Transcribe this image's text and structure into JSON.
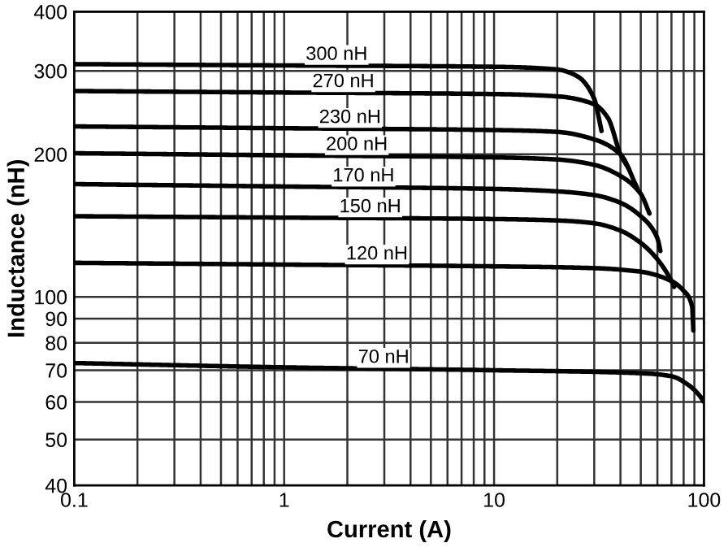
{
  "chart_data": {
    "type": "line",
    "xlabel": "Current (A)",
    "ylabel": "Inductance (nH)",
    "log": "xy",
    "grid": true,
    "marker": "none",
    "line_style": "solid",
    "xlim": [
      0.1,
      100
    ],
    "ylim": [
      40,
      400
    ],
    "xticks": [
      0.1,
      1,
      10,
      100
    ],
    "yticks": [
      40,
      50,
      60,
      70,
      80,
      90,
      100,
      200,
      300,
      400
    ],
    "series": [
      {
        "name": "300 nH",
        "color": "#000000",
        "x": [
          0.1,
          1,
          10,
          20,
          25,
          30,
          32.5
        ],
        "values": [
          310,
          308,
          306,
          302,
          292,
          262,
          224
        ]
      },
      {
        "name": "270 nH",
        "color": "#000000",
        "x": [
          0.1,
          1,
          10,
          20,
          30,
          35,
          40,
          44
        ],
        "values": [
          272,
          270,
          268,
          265,
          255,
          238,
          200,
          186
        ]
      },
      {
        "name": "230 nH",
        "color": "#000000",
        "x": [
          0.1,
          1,
          10,
          20,
          30,
          40,
          48
        ],
        "values": [
          229,
          227,
          225,
          223,
          215,
          200,
          170
        ]
      },
      {
        "name": "200 nH",
        "color": "#000000",
        "x": [
          0.1,
          1,
          10,
          20,
          30,
          40,
          50,
          55
        ],
        "values": [
          201,
          199,
          197,
          195,
          190,
          180,
          165,
          150
        ]
      },
      {
        "name": "170 nH",
        "color": "#000000",
        "x": [
          0.1,
          1,
          10,
          20,
          30,
          40,
          50,
          60,
          62
        ],
        "values": [
          173,
          171,
          169,
          167,
          164,
          158,
          148,
          133,
          125
        ]
      },
      {
        "name": "150 nH",
        "color": "#000000",
        "x": [
          0.1,
          1,
          10,
          20,
          30,
          40,
          50,
          60,
          70,
          72
        ],
        "values": [
          148,
          147,
          146,
          145,
          143,
          138,
          130,
          120,
          108,
          105
        ]
      },
      {
        "name": "120 nH",
        "color": "#000000",
        "x": [
          0.1,
          1,
          10,
          30,
          50,
          70,
          80,
          88,
          89
        ],
        "values": [
          118,
          117,
          116,
          115,
          113,
          108,
          103,
          95,
          85
        ]
      },
      {
        "name": "70 nH",
        "color": "#000000",
        "x": [
          0.1,
          1,
          10,
          50,
          70,
          85,
          95,
          100
        ],
        "values": [
          72.5,
          71,
          70,
          69,
          68,
          65,
          62,
          60
        ]
      }
    ]
  }
}
